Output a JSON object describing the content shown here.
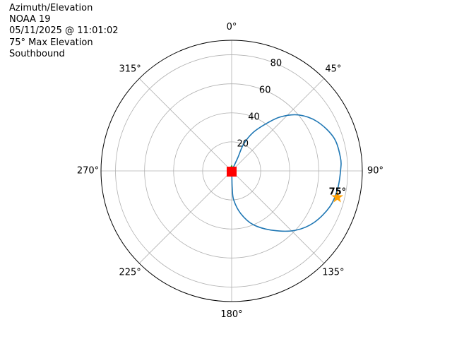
{
  "info": {
    "line1": "Azimuth/Elevation",
    "line2": "NOAA 19",
    "line3": "05/11/2025 @ 11:01:02",
    "line4": "75° Max Elevation",
    "line5": "Southbound"
  },
  "chart_data": {
    "type": "polar-line",
    "theta_direction": "clockwise",
    "theta_zero": "north",
    "radial_axis": "90 minus elevation (degrees)",
    "radial_range": [
      0,
      90
    ],
    "radial_ticks": [
      20,
      40,
      60,
      80
    ],
    "radial_tick_labels": [
      "20",
      "40",
      "60",
      "80"
    ],
    "angle_ticks": [
      0,
      45,
      90,
      135,
      180,
      225,
      270,
      315
    ],
    "angle_tick_labels": [
      "0°",
      "45°",
      "90°",
      "135°",
      "180°",
      "225°",
      "270°",
      "315°"
    ],
    "grid": true,
    "series": [
      {
        "color": "#1f77b4",
        "points": [
          {
            "az": 45,
            "r": 0
          },
          {
            "az": 25,
            "r": 10
          },
          {
            "az": 24,
            "r": 20
          },
          {
            "az": 29,
            "r": 30
          },
          {
            "az": 36,
            "r": 40
          },
          {
            "az": 42,
            "r": 50
          },
          {
            "az": 50,
            "r": 60
          },
          {
            "az": 60,
            "r": 68
          },
          {
            "az": 72,
            "r": 74
          },
          {
            "az": 83,
            "r": 75.5
          },
          {
            "az": 90,
            "r": 75
          },
          {
            "az": 100,
            "r": 74
          },
          {
            "az": 110,
            "r": 72
          },
          {
            "az": 122,
            "r": 67
          },
          {
            "az": 133,
            "r": 60
          },
          {
            "az": 145,
            "r": 50
          },
          {
            "az": 158,
            "r": 40
          },
          {
            "az": 168,
            "r": 30
          },
          {
            "az": 176,
            "r": 20
          },
          {
            "az": 178,
            "r": 12
          },
          {
            "az": 178,
            "r": 5
          },
          {
            "az": 180,
            "r": 0
          }
        ]
      }
    ],
    "markers": {
      "start": {
        "az": 0,
        "r": 0.5,
        "color": "#2ca02c"
      },
      "end": {
        "az": 180,
        "r": 0.5,
        "color": "#ff0000"
      },
      "max": {
        "az": 104,
        "r": 75,
        "color": "#ff9f00",
        "label": "75°"
      }
    }
  }
}
